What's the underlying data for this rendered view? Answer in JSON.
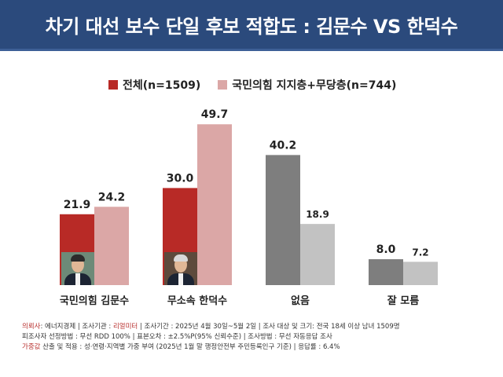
{
  "title": "차기 대선 보수 단일 후보 적합도 : 김문수 VS 한덕수",
  "chart_data": {
    "type": "bar",
    "categories": [
      "국민의힘 김문수",
      "무소속 한덕수",
      "없음",
      "잘 모름"
    ],
    "series": [
      {
        "name": "전체(n=1509)",
        "values": [
          21.9,
          30.0,
          40.2,
          8.0
        ]
      },
      {
        "name": "국민의힘 지지층+무당층(n=744)",
        "values": [
          24.2,
          49.7,
          18.9,
          7.2
        ]
      }
    ],
    "value_labels": [
      [
        "21.9",
        "30.0",
        "40.2",
        "8.0"
      ],
      [
        "24.2",
        "49.7",
        "18.9",
        "7.2"
      ]
    ],
    "ylim": [
      0,
      50
    ],
    "grid": false,
    "legend_position": "top",
    "colors": {
      "series1": "#b82a26",
      "series2": "#dba7a6",
      "neutral1": "#7e7e7e",
      "neutral2": "#c2c2c2"
    }
  },
  "footer": {
    "line1_key1": "의뢰사",
    "line1_rest1": ": 에너지경제 | 조사기관 : ",
    "line1_key2": "리얼미터",
    "line1_rest2": " | 조사기간 : 2025년 4월 30일~5월 2일 | 조사 대상 및 크기: 전국 18세 이상 남녀 1509명",
    "line2": "피조사자 선정방법 : 무선 RDD 100% | 표본오차 : ±2.5%P(95% 신뢰수준) | 조사방법 : 무선 자동응답 조사",
    "line3_key": "가중값",
    "line3_rest": " 산출 및 적용 : 성·연령·지역별 가중 부여 (2025년 1월 말 행정안전부 주민등록인구 기준) | 응답률 : 6.4%"
  }
}
